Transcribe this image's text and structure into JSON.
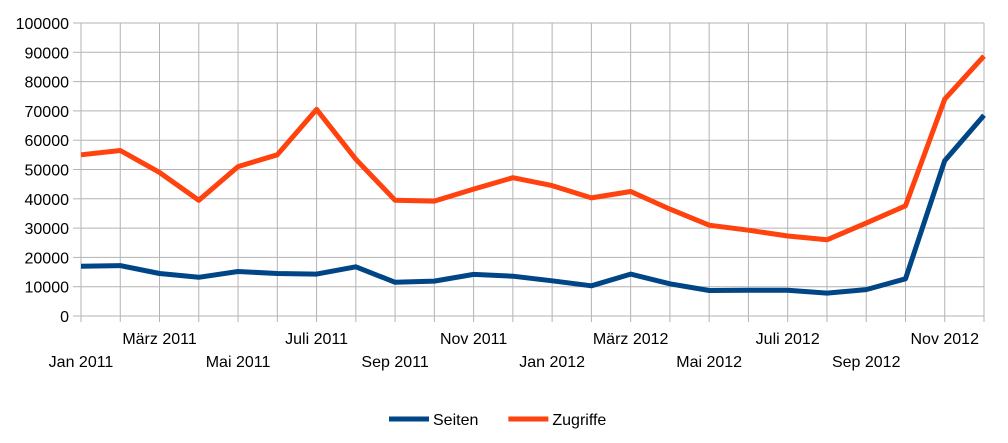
{
  "chart_data": {
    "type": "line",
    "x": [
      "2011-01",
      "2011-02",
      "2011-03",
      "2011-04",
      "2011-05",
      "2011-06",
      "2011-07",
      "2011-08",
      "2011-09",
      "2011-10",
      "2011-11",
      "2011-12",
      "2012-01",
      "2012-02",
      "2012-03",
      "2012-04",
      "2012-05",
      "2012-06",
      "2012-07",
      "2012-08",
      "2012-09",
      "2012-10",
      "2012-11",
      "2012-12"
    ],
    "x_tick_labels": [
      {
        "label": "Jan 2011",
        "row": 2
      },
      {
        "label": "März  2011",
        "row": 1
      },
      {
        "label": "Mai 2011",
        "row": 2
      },
      {
        "label": "Juli 2011",
        "row": 1
      },
      {
        "label": "Sep 2011",
        "row": 2
      },
      {
        "label": "Nov 2011",
        "row": 1
      },
      {
        "label": "Jan 2012",
        "row": 2
      },
      {
        "label": "März  2012",
        "row": 1
      },
      {
        "label": "Mai 2012",
        "row": 2
      },
      {
        "label": "Juli 2012",
        "row": 1
      },
      {
        "label": "Sep 2012",
        "row": 2
      },
      {
        "label": "Nov 2012",
        "row": 1
      }
    ],
    "y_ticks": [
      "0",
      "10000",
      "20000",
      "30000",
      "40000",
      "50000",
      "60000",
      "70000",
      "80000",
      "90000",
      "100000"
    ],
    "ylim": [
      0,
      100000
    ],
    "grid": true,
    "legend_position": "bottom",
    "series": [
      {
        "name": "Seiten",
        "color": "#004586",
        "values": [
          17000,
          17200,
          14500,
          13200,
          15200,
          14500,
          14300,
          16800,
          11500,
          11900,
          14200,
          13600,
          12000,
          10300,
          14300,
          11000,
          8700,
          8800,
          8800,
          7800,
          9000,
          12700,
          53000,
          68500
        ]
      },
      {
        "name": "Zugriffe",
        "color": "#ff420e",
        "values": [
          55000,
          56500,
          49000,
          39500,
          51000,
          55000,
          70500,
          53500,
          39500,
          39200,
          43300,
          47200,
          44500,
          40300,
          42500,
          36500,
          31000,
          29300,
          27300,
          26000,
          31700,
          37600,
          74000,
          88700
        ]
      }
    ]
  }
}
